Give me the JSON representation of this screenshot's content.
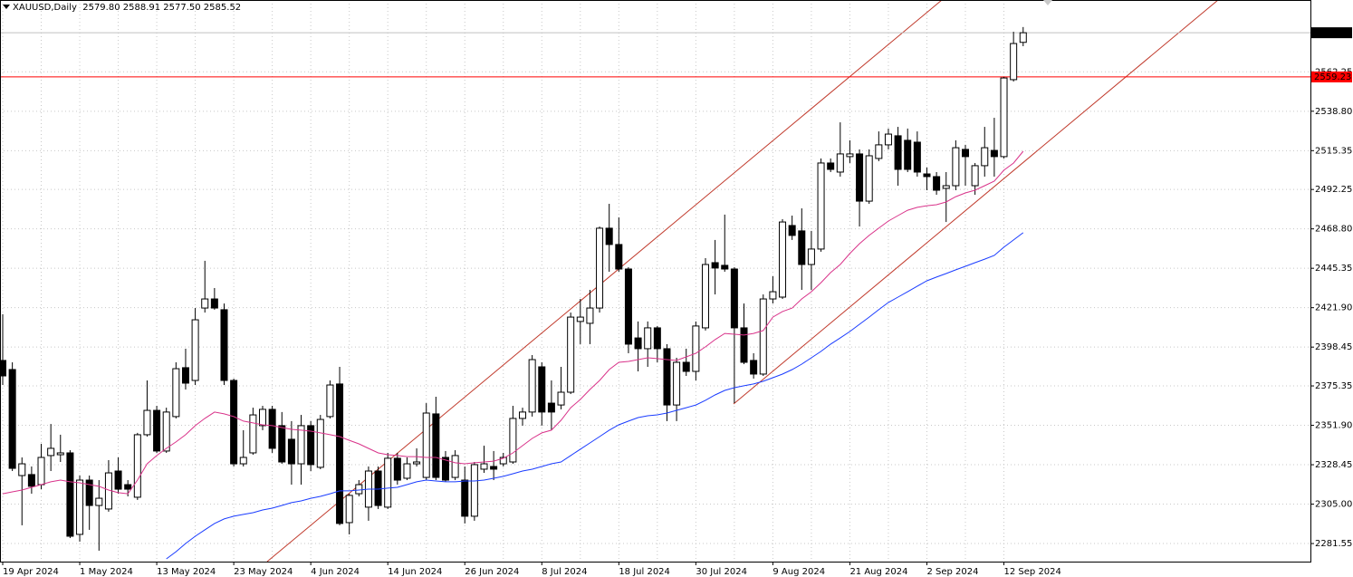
{
  "chart_data": {
    "type": "candlestick",
    "title": "XAUUSD,Daily  2579.80 2588.91 2577.50 2585.52",
    "categories": [
      "19 Apr 2024",
      null,
      null,
      null,
      null,
      null,
      null,
      null,
      "1 May 2024",
      null,
      null,
      null,
      null,
      null,
      null,
      null,
      "13 May 2024",
      null,
      null,
      null,
      null,
      null,
      null,
      null,
      "23 May 2024",
      null,
      null,
      null,
      null,
      null,
      null,
      null,
      "4 Jun 2024",
      null,
      null,
      null,
      null,
      null,
      null,
      null,
      "14 Jun 2024",
      null,
      null,
      null,
      null,
      null,
      null,
      null,
      "26 Jun 2024",
      null,
      null,
      null,
      null,
      null,
      null,
      null,
      "8 Jul 2024",
      null,
      null,
      null,
      null,
      null,
      null,
      null,
      "18 Jul 2024",
      null,
      null,
      null,
      null,
      null,
      null,
      null,
      "30 Jul 2024",
      null,
      null,
      null,
      null,
      null,
      null,
      null,
      "9 Aug 2024",
      null,
      null,
      null,
      null,
      null,
      null,
      null,
      "21 Aug 2024",
      null,
      null,
      null,
      null,
      null,
      null,
      null,
      "2 Sep 2024",
      null,
      null,
      null,
      null,
      null,
      null,
      null,
      "12 Sep 2024",
      null,
      null
    ],
    "open": [
      2390.5,
      2385.1,
      2322.0,
      2322.6,
      2316.6,
      2333.9,
      2334.4,
      2335.5,
      2287.0,
      2319.3,
      2304.2,
      2302.1,
      2324.7,
      2316.6,
      2309.1,
      2346.3,
      2360.8,
      2336.6,
      2357.1,
      2386.2,
      2378.6,
      2421.7,
      2427.1,
      2420.7,
      2378.6,
      2329.0,
      2335.5,
      2351.7,
      2361.4,
      2351.7,
      2343.6,
      2329.0,
      2351.7,
      2326.9,
      2357.1,
      2376.5,
      2294.0,
      2311.2,
      2303.2,
      2324.7,
      2303.2,
      2332.3,
      2320.4,
      2329.0,
      2320.9,
      2358.7,
      2332.8,
      2320.9,
      2319.3,
      2297.8,
      2325.8,
      2327.4,
      2329.0,
      2330.1,
      2356.0,
      2359.8,
      2386.7,
      2365.1,
      2364.0,
      2371.6,
      2413.7,
      2412.6,
      2421.7,
      2469.2,
      2459.5,
      2444.9,
      2403.9,
      2397.5,
      2409.9,
      2397.5,
      2364.0,
      2389.4,
      2384.0,
      2409.9,
      2448.7,
      2447.1,
      2444.9,
      2409.9,
      2390.5,
      2382.4,
      2427.1,
      2428.2,
      2470.8,
      2467.6,
      2447.6,
      2456.8,
      2508.0,
      2502.6,
      2511.8,
      2513.4,
      2485.3,
      2510.7,
      2518.8,
      2524.2,
      2521.5,
      2520.4,
      2501.5,
      2499.9,
      2492.9,
      2494.5,
      2516.1,
      2494.5,
      2506.4,
      2515.5,
      2511.8,
      2557.6,
      2579.8
    ],
    "high": [
      2418.0,
      2389.4,
      2332.8,
      2327.4,
      2340.9,
      2352.7,
      2346.3,
      2337.1,
      2322.0,
      2322.0,
      2319.3,
      2331.2,
      2332.8,
      2319.3,
      2347.4,
      2378.6,
      2363.5,
      2362.4,
      2389.4,
      2397.5,
      2421.7,
      2449.8,
      2433.6,
      2424.4,
      2379.7,
      2349.0,
      2362.4,
      2363.5,
      2363.5,
      2359.8,
      2354.4,
      2358.1,
      2354.4,
      2358.1,
      2378.6,
      2386.7,
      2311.2,
      2319.3,
      2327.4,
      2327.4,
      2335.5,
      2335.5,
      2332.8,
      2338.2,
      2365.1,
      2368.9,
      2336.6,
      2337.1,
      2327.4,
      2330.1,
      2339.8,
      2336.6,
      2335.5,
      2363.5,
      2362.4,
      2393.7,
      2389.4,
      2378.6,
      2386.7,
      2419.0,
      2427.1,
      2432.5,
      2470.2,
      2483.7,
      2475.6,
      2446.0,
      2413.7,
      2413.7,
      2411.0,
      2400.2,
      2392.1,
      2397.5,
      2413.7,
      2451.4,
      2462.2,
      2477.3,
      2446.0,
      2424.4,
      2394.8,
      2429.8,
      2440.6,
      2474.6,
      2476.7,
      2481.0,
      2467.6,
      2510.7,
      2510.7,
      2532.2,
      2521.5,
      2516.1,
      2516.1,
      2526.8,
      2528.5,
      2529.5,
      2528.5,
      2526.8,
      2505.3,
      2502.6,
      2502.6,
      2521.5,
      2518.8,
      2508.0,
      2529.5,
      2534.9,
      2559.2,
      2586.1,
      2588.91
    ],
    "low": [
      2375.9,
      2324.7,
      2292.4,
      2311.2,
      2313.9,
      2324.7,
      2330.1,
      2284.8,
      2282.7,
      2289.7,
      2277.3,
      2300.5,
      2311.2,
      2309.6,
      2307.5,
      2345.2,
      2335.5,
      2335.5,
      2356.0,
      2373.2,
      2375.9,
      2419.0,
      2420.7,
      2375.9,
      2327.4,
      2327.4,
      2334.4,
      2349.0,
      2335.5,
      2329.0,
      2316.6,
      2316.6,
      2324.7,
      2325.8,
      2356.0,
      2292.4,
      2287.0,
      2309.6,
      2295.1,
      2302.1,
      2302.1,
      2316.6,
      2319.3,
      2327.4,
      2319.3,
      2319.3,
      2318.3,
      2319.3,
      2293.5,
      2295.1,
      2323.6,
      2319.3,
      2327.4,
      2329.0,
      2351.7,
      2357.1,
      2351.7,
      2349.0,
      2361.4,
      2370.5,
      2400.2,
      2400.2,
      2419.0,
      2443.3,
      2443.3,
      2394.8,
      2384.0,
      2386.7,
      2389.4,
      2354.4,
      2354.4,
      2381.3,
      2378.6,
      2408.3,
      2429.8,
      2443.3,
      2365.1,
      2388.3,
      2379.7,
      2381.3,
      2424.4,
      2427.1,
      2462.2,
      2432.5,
      2432.5,
      2455.2,
      2502.6,
      2499.9,
      2508.0,
      2470.2,
      2483.7,
      2509.1,
      2516.1,
      2494.5,
      2502.6,
      2499.9,
      2491.8,
      2489.1,
      2472.9,
      2491.8,
      2494.5,
      2489.1,
      2499.9,
      2499.9,
      2510.7,
      2556.5,
      2577.5
    ],
    "close": [
      2381.3,
      2326.3,
      2329.0,
      2315.6,
      2332.8,
      2338.2,
      2335.5,
      2285.9,
      2319.3,
      2304.2,
      2308.5,
      2323.6,
      2313.9,
      2313.9,
      2346.3,
      2360.8,
      2336.6,
      2359.8,
      2385.6,
      2377.0,
      2414.7,
      2427.1,
      2421.7,
      2378.6,
      2329.0,
      2332.8,
      2358.1,
      2361.4,
      2338.2,
      2330.1,
      2329.0,
      2351.7,
      2328.5,
      2355.4,
      2375.9,
      2293.5,
      2310.2,
      2316.6,
      2324.7,
      2304.2,
      2332.3,
      2319.3,
      2329.0,
      2330.1,
      2359.2,
      2320.9,
      2319.3,
      2333.9,
      2297.8,
      2328.5,
      2329.0,
      2325.8,
      2332.8,
      2356.0,
      2359.8,
      2391.0,
      2359.8,
      2359.8,
      2371.6,
      2416.3,
      2416.3,
      2421.7,
      2469.2,
      2459.5,
      2444.9,
      2400.2,
      2397.5,
      2409.9,
      2397.5,
      2364.0,
      2389.4,
      2384.0,
      2411.0,
      2447.6,
      2445.5,
      2444.9,
      2409.9,
      2389.4,
      2382.4,
      2427.1,
      2431.4,
      2472.9,
      2464.9,
      2447.6,
      2456.8,
      2508.0,
      2504.2,
      2513.4,
      2513.4,
      2485.3,
      2512.3,
      2518.8,
      2525.2,
      2504.2,
      2504.2,
      2502.6,
      2499.9,
      2491.8,
      2494.5,
      2517.1,
      2511.8,
      2506.4,
      2517.1,
      2511.8,
      2558.6,
      2579.1,
      2585.52
    ],
    "up_color": "#ffffff",
    "down_color": "#000000",
    "lines": [
      {
        "color": "#d9338a",
        "values": [
          2311.2,
          2312.3,
          2313.4,
          2315.0,
          2316.6,
          2318.3,
          2319.3,
          2318.3,
          2317.7,
          2316.6,
          2315.6,
          2313.4,
          2311.8,
          2311.2,
          2319.3,
          2329.0,
          2333.9,
          2338.2,
          2342.0,
          2346.3,
          2351.7,
          2356.0,
          2359.8,
          2358.7,
          2357.1,
          2354.4,
          2353.3,
          2352.2,
          2351.7,
          2350.6,
          2349.5,
          2349.0,
          2348.4,
          2347.4,
          2346.3,
          2345.2,
          2343.0,
          2340.9,
          2338.2,
          2335.5,
          2334.4,
          2333.9,
          2333.3,
          2333.3,
          2332.8,
          2332.8,
          2331.2,
          2329.6,
          2329.0,
          2329.6,
          2330.1,
          2330.6,
          2332.3,
          2335.5,
          2339.8,
          2344.1,
          2347.4,
          2349.0,
          2354.9,
          2362.4,
          2367.3,
          2373.2,
          2378.6,
          2385.1,
          2389.4,
          2389.9,
          2391.0,
          2392.1,
          2391.6,
          2391.0,
          2390.5,
          2392.6,
          2394.8,
          2398.6,
          2402.9,
          2406.6,
          2406.1,
          2405.6,
          2406.6,
          2408.3,
          2416.3,
          2419.6,
          2421.7,
          2427.1,
          2431.4,
          2436.8,
          2442.8,
          2447.6,
          2454.1,
          2460.0,
          2464.9,
          2469.2,
          2473.5,
          2476.7,
          2479.9,
          2481.6,
          2482.6,
          2483.2,
          2484.8,
          2488.0,
          2490.2,
          2491.8,
          2494.5,
          2497.2,
          2503.7,
          2508.0,
          2515.0
        ]
      },
      {
        "color": "#1a3cff",
        "values": [
          null,
          null,
          null,
          null,
          null,
          null,
          null,
          null,
          null,
          null,
          null,
          null,
          null,
          null,
          null,
          null,
          null,
          2272.4,
          2276.7,
          2281.6,
          2285.9,
          2289.7,
          2293.5,
          2296.2,
          2297.8,
          2298.9,
          2299.9,
          2301.5,
          2302.6,
          2304.2,
          2305.9,
          2306.9,
          2308.5,
          2309.6,
          2311.2,
          2312.9,
          2312.9,
          2313.4,
          2313.9,
          2313.9,
          2314.5,
          2315.0,
          2316.6,
          2318.3,
          2319.3,
          2318.8,
          2318.3,
          2318.3,
          2318.8,
          2318.8,
          2319.3,
          2320.4,
          2321.5,
          2323.1,
          2324.7,
          2325.8,
          2327.4,
          2329.0,
          2330.1,
          2333.9,
          2337.7,
          2341.4,
          2345.2,
          2349.0,
          2352.2,
          2354.4,
          2356.5,
          2357.6,
          2358.1,
          2359.2,
          2360.8,
          2362.4,
          2364.0,
          2366.8,
          2370.0,
          2372.7,
          2374.3,
          2375.4,
          2376.5,
          2378.1,
          2380.2,
          2382.4,
          2385.1,
          2388.3,
          2392.1,
          2395.9,
          2400.2,
          2403.9,
          2407.7,
          2412.0,
          2416.3,
          2420.7,
          2425.0,
          2428.2,
          2431.4,
          2434.7,
          2437.9,
          2440.1,
          2442.2,
          2444.4,
          2446.5,
          2448.7,
          2450.8,
          2453.0,
          2457.9,
          2462.2,
          2466.5
        ]
      }
    ],
    "ylim": [
      2270.8,
      2605.0
    ],
    "yticks": [
      2281.55,
      {
        "value": 2305.0,
        "label": "2305.00"
      },
      2328.45,
      {
        "value": 2351.9,
        "label": "2351.90"
      },
      2375.35,
      2398.45,
      {
        "value": 2421.9,
        "label": "2421.90"
      },
      2445.35,
      {
        "value": 2468.8,
        "label": "2468.80"
      },
      2492.25,
      2515.35,
      {
        "value": 2538.8,
        "label": "2538.80"
      },
      2562.25
    ],
    "grid": true,
    "price_line": {
      "value": 2559.23,
      "color": "#ff0000"
    },
    "last_price": 2585.52
  }
}
